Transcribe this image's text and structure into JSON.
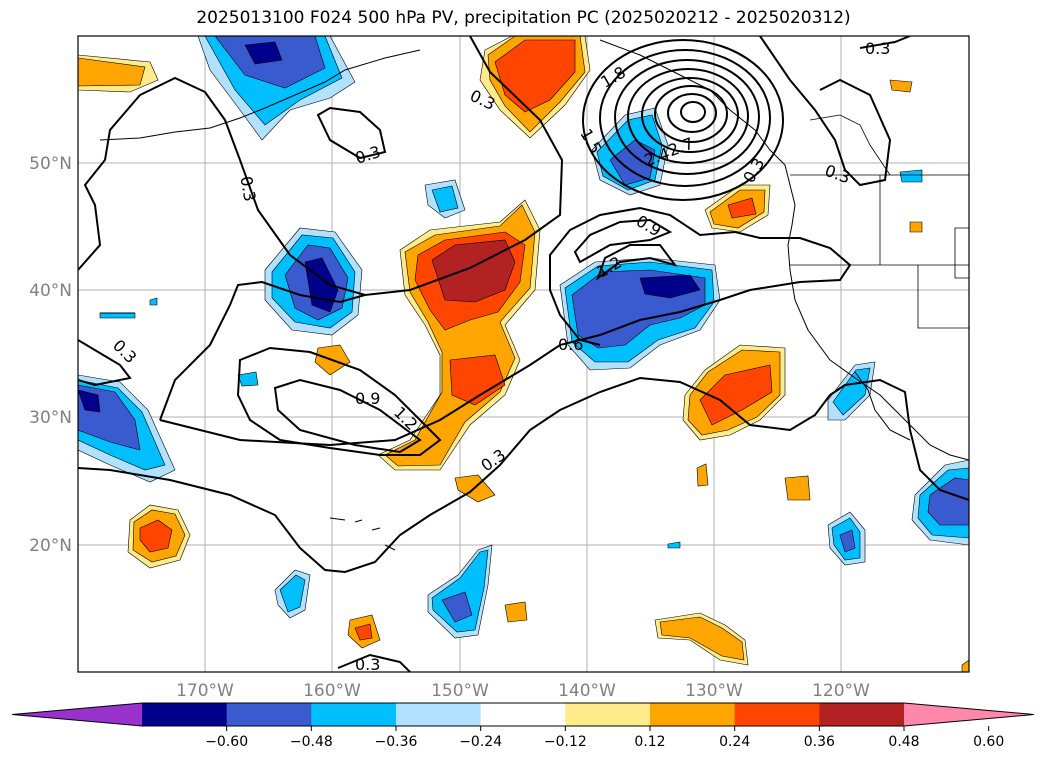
{
  "title": "2025013100 F024 500 hPa PV, precipitation PC (2025020212 - 2025020312)",
  "latitude_labels": [
    "50°N",
    "40°N",
    "30°N",
    "20°N"
  ],
  "longitude_labels": [
    "170°W",
    "160°W",
    "150°W",
    "140°W",
    "130°W",
    "120°W"
  ],
  "colorbar": {
    "colors": [
      "#9932cc",
      "#00008b",
      "#3a5bcf",
      "#00bfff",
      "#b0e2ff",
      "#ffffff",
      "#ffeb8a",
      "#ffa500",
      "#ff4500",
      "#b22222",
      "#ff88aa"
    ],
    "tick_labels": [
      "−0.60",
      "−0.48",
      "−0.36",
      "−0.24",
      "−0.12",
      "0.12",
      "0.24",
      "0.36",
      "0.48",
      "0.60"
    ]
  },
  "contour_labels": [
    "0.3",
    "0.3",
    "0.3",
    "0.3",
    "0.3",
    "0.3",
    "0.3",
    "0.6",
    "0.9",
    "0.9",
    "1.2",
    "1.2",
    "1.5",
    "1.8",
    "2.4",
    "2.7",
    "0.3",
    "0.3"
  ],
  "map_extent": {
    "lon": [
      -180,
      -110
    ],
    "lat": [
      10,
      60
    ]
  }
}
